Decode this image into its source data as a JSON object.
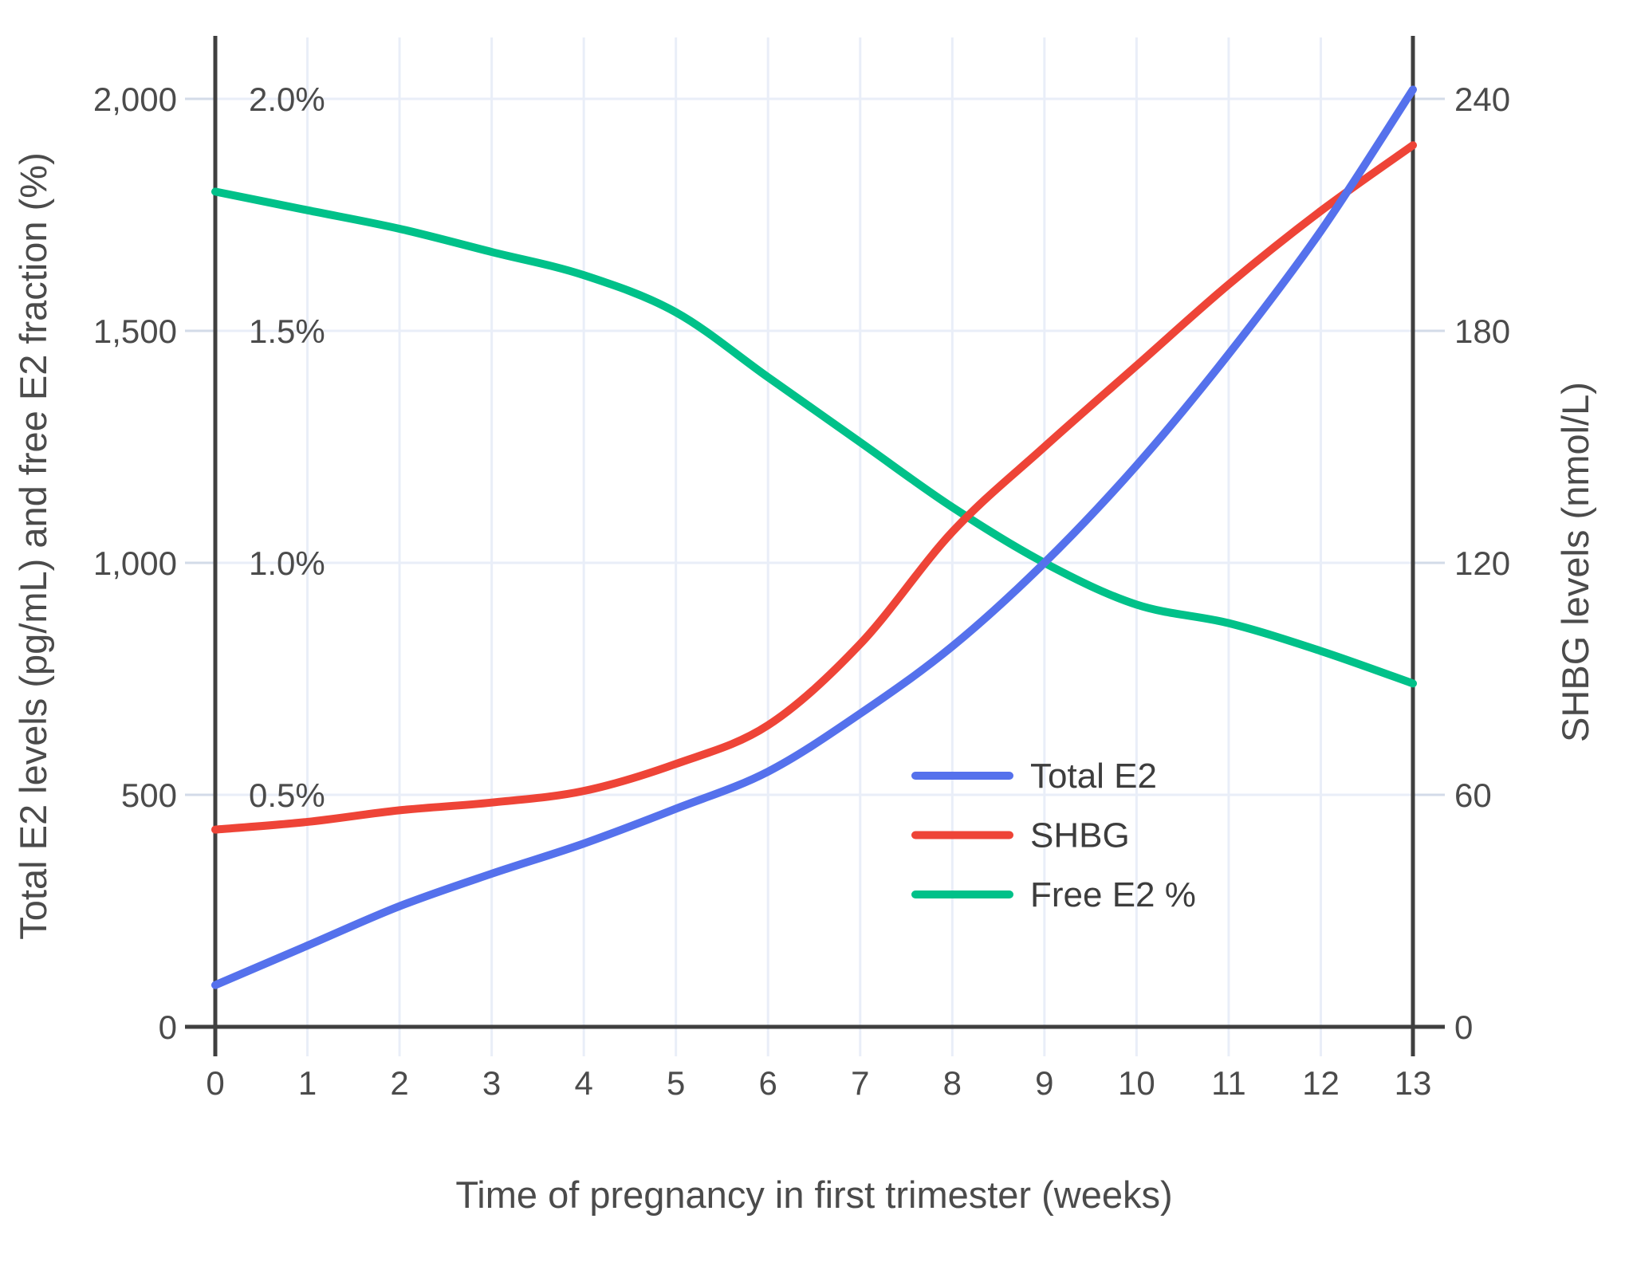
{
  "chart_data": {
    "type": "line",
    "title": "",
    "xlabel": "Time of pregnancy in first trimester (weeks)",
    "ylabel_left": "Total E2 levels (pg/mL) and free E2 fraction (%)",
    "ylabel_right": "SHBG levels (nmol/L)",
    "x": [
      0,
      1,
      2,
      3,
      4,
      5,
      6,
      7,
      8,
      9,
      10,
      11,
      12,
      13
    ],
    "xlim": [
      0,
      13
    ],
    "ylim_left": [
      0,
      2000
    ],
    "ylim_left_percent": [
      0,
      2.0
    ],
    "ylim_right": [
      0,
      240
    ],
    "grid": true,
    "legend_position": "inside-right-middle",
    "series": [
      {
        "name": "Total E2",
        "axis": "left",
        "units": "pg/mL",
        "color": "#5571ec",
        "values": [
          90,
          175,
          260,
          330,
          395,
          470,
          550,
          675,
          820,
          1000,
          1210,
          1450,
          1715,
          2020
        ]
      },
      {
        "name": "SHBG",
        "axis": "right",
        "units": "nmol/L",
        "color": "#ee4437",
        "values": [
          51,
          53,
          56,
          58,
          61,
          68,
          78,
          99,
          128,
          150,
          171,
          192,
          211,
          228
        ]
      },
      {
        "name": "Free E2 %",
        "axis": "left-percent",
        "units": "%",
        "color": "#00c189",
        "values": [
          1.8,
          1.76,
          1.72,
          1.67,
          1.62,
          1.54,
          1.4,
          1.26,
          1.12,
          1.0,
          0.91,
          0.87,
          0.81,
          0.74
        ]
      }
    ],
    "axis_ticks": {
      "left": [
        {
          "value": 0,
          "label": "0"
        },
        {
          "value": 500,
          "label": "500"
        },
        {
          "value": 1000,
          "label": "1,000"
        },
        {
          "value": 1500,
          "label": "1,500"
        },
        {
          "value": 2000,
          "label": "2,000"
        }
      ],
      "left_inner_percent": [
        {
          "value": 500,
          "label": "0.5%"
        },
        {
          "value": 1000,
          "label": "1.0%"
        },
        {
          "value": 1500,
          "label": "1.5%"
        },
        {
          "value": 2000,
          "label": "2.0%"
        }
      ],
      "right": [
        {
          "value": 0,
          "label": "0"
        },
        {
          "value": 60,
          "label": "60"
        },
        {
          "value": 120,
          "label": "120"
        },
        {
          "value": 180,
          "label": "180"
        },
        {
          "value": 240,
          "label": "240"
        }
      ],
      "x": [
        {
          "value": 0,
          "label": "0"
        },
        {
          "value": 1,
          "label": "1"
        },
        {
          "value": 2,
          "label": "2"
        },
        {
          "value": 3,
          "label": "3"
        },
        {
          "value": 4,
          "label": "4"
        },
        {
          "value": 5,
          "label": "5"
        },
        {
          "value": 6,
          "label": "6"
        },
        {
          "value": 7,
          "label": "7"
        },
        {
          "value": 8,
          "label": "8"
        },
        {
          "value": 9,
          "label": "9"
        },
        {
          "value": 10,
          "label": "10"
        },
        {
          "value": 11,
          "label": "11"
        },
        {
          "value": 12,
          "label": "12"
        },
        {
          "value": 13,
          "label": "13"
        }
      ]
    }
  },
  "legend": {
    "items": [
      {
        "label": "Total E2",
        "color": "#5571ec"
      },
      {
        "label": "SHBG",
        "color": "#ee4437"
      },
      {
        "label": "Free E2 %",
        "color": "#00c189"
      }
    ]
  },
  "colors": {
    "background": "#ffffff",
    "gridline": "#e9eef8",
    "tick_mark": "#d3dbe8",
    "axis_line": "#3f3f3f",
    "tick_label": "#4b4b4b",
    "axis_title": "#4b4b4b",
    "legend_text": "#3d3d3d"
  }
}
